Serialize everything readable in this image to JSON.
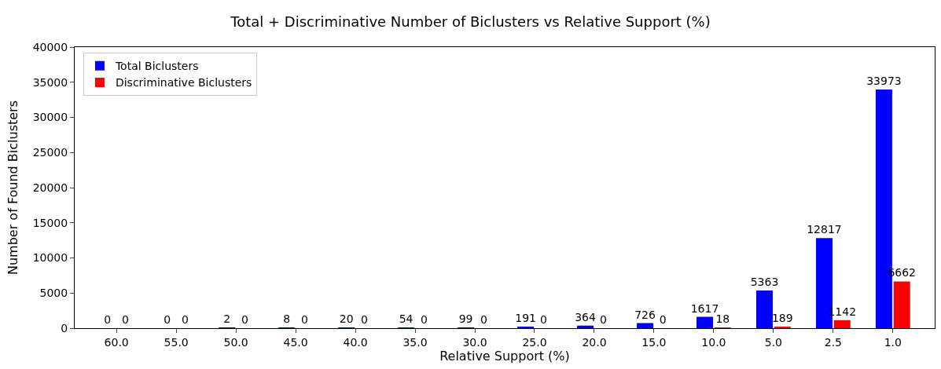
{
  "chart_data": {
    "type": "bar",
    "title": "Total + Discriminative Number of Biclusters vs Relative Support (%)",
    "xlabel": "Relative Support (%)",
    "ylabel": "Number of Found Biclusters",
    "categories": [
      "60.0",
      "55.0",
      "50.0",
      "45.0",
      "40.0",
      "35.0",
      "30.0",
      "25.0",
      "20.0",
      "15.0",
      "10.0",
      "5.0",
      "2.5",
      "1.0"
    ],
    "series": [
      {
        "name": "Total Biclusters",
        "color": "#0000ff",
        "values": [
          0,
          0,
          2,
          8,
          20,
          54,
          99,
          191,
          364,
          726,
          1617,
          5363,
          12817,
          33973
        ]
      },
      {
        "name": "Discriminative Biclusters",
        "color": "#ff0000",
        "values": [
          0,
          0,
          0,
          0,
          0,
          0,
          0,
          0,
          0,
          0,
          18,
          189,
          1142,
          6662
        ]
      }
    ],
    "ylim": [
      0,
      40000
    ],
    "yticks": [
      0,
      5000,
      10000,
      15000,
      20000,
      25000,
      30000,
      35000,
      40000
    ],
    "data_labels": true,
    "legend": "top left"
  }
}
